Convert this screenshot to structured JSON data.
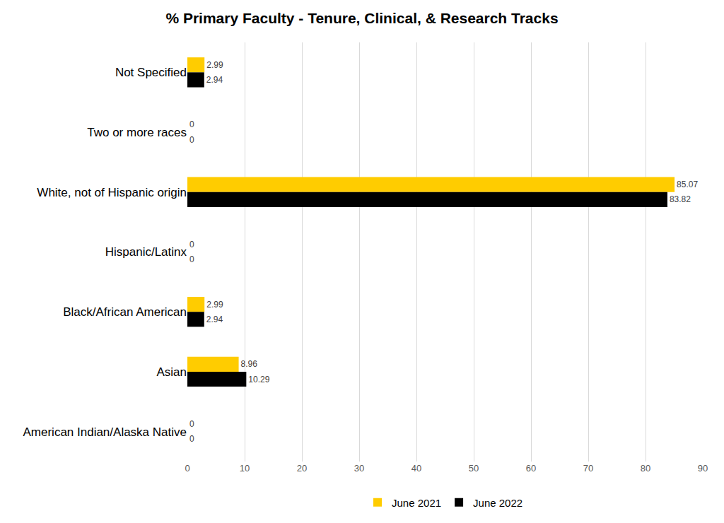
{
  "chart_data": {
    "type": "bar",
    "title": "% Primary Faculty - Tenure, Clinical, & Research Tracks",
    "orientation": "horizontal",
    "categories": [
      "Not Specified",
      "Two or more races",
      "White, not of Hispanic origin",
      "Hispanic/Latinx",
      "Black/African American",
      "Asian",
      "American Indian/Alaska Native"
    ],
    "series": [
      {
        "name": "June 2021",
        "color": "#FFCC00",
        "values": [
          2.99,
          0,
          85.07,
          0,
          2.99,
          8.96,
          0
        ]
      },
      {
        "name": "June 2022",
        "color": "#000000",
        "values": [
          2.94,
          0,
          83.82,
          0,
          2.94,
          10.29,
          0
        ]
      }
    ],
    "xlim": [
      0,
      90
    ],
    "xticks": [
      0,
      10,
      20,
      30,
      40,
      50,
      60,
      70,
      80,
      90
    ],
    "grid": true,
    "legend": "bottom",
    "data_labels": true
  }
}
